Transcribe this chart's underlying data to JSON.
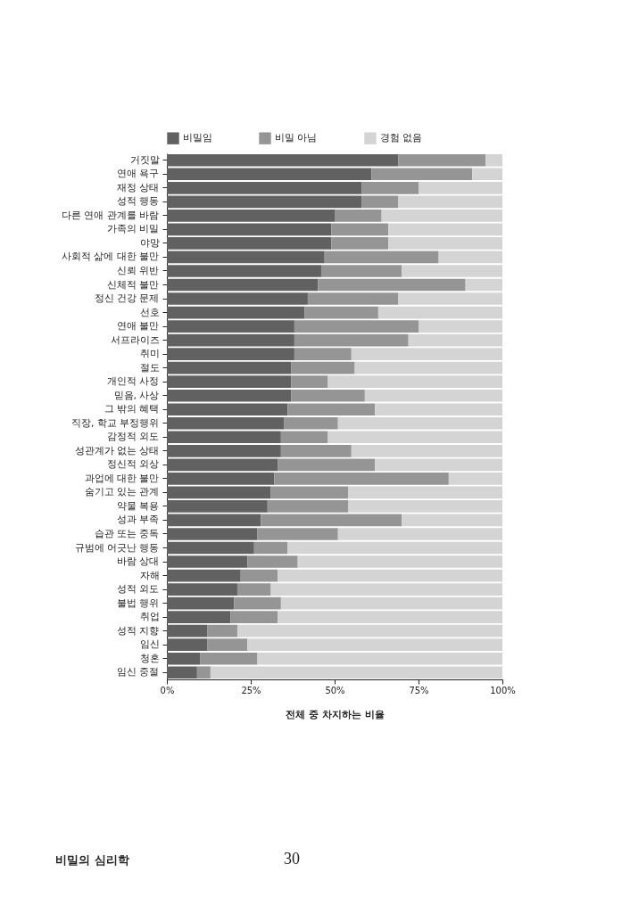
{
  "chart_data": {
    "type": "bar",
    "orientation": "horizontal",
    "stacked": true,
    "categories": [
      "거짓말",
      "연애 욕구",
      "재정 상태",
      "성적 행동",
      "다른 연애 관계를 바람",
      "가족의 비밀",
      "야망",
      "사회적 삶에 대한 불만",
      "신뢰 위반",
      "신체적 불만",
      "정신 건강 문제",
      "선호",
      "연애 불만",
      "서프라이즈",
      "취미",
      "절도",
      "개인적 사정",
      "믿음, 사상",
      "그 밖의 혜택",
      "직장, 학교 부정행위",
      "감정적 외도",
      "성관계가 없는 상태",
      "정신적 외상",
      "과업에 대한 불만",
      "숨기고 있는 관계",
      "약물 복용",
      "성과 부족",
      "습관 또는 중독",
      "규범에 어긋난 행동",
      "바람 상대",
      "자해",
      "성적 외도",
      "불법 행위",
      "취업",
      "성적 지향",
      "임신",
      "청혼",
      "임신 중절"
    ],
    "series": [
      {
        "name": "비밀임",
        "color": "#616161",
        "values": [
          69,
          61,
          58,
          58,
          50,
          49,
          49,
          47,
          46,
          45,
          42,
          41,
          38,
          38,
          38,
          37,
          37,
          37,
          36,
          35,
          34,
          34,
          33,
          32,
          31,
          30,
          28,
          27,
          26,
          24,
          22,
          21,
          20,
          19,
          12,
          12,
          10,
          9
        ]
      },
      {
        "name": "비밀 아님",
        "color": "#959595",
        "values": [
          26,
          30,
          17,
          11,
          14,
          17,
          17,
          34,
          24,
          44,
          27,
          22,
          37,
          34,
          17,
          19,
          11,
          22,
          26,
          16,
          14,
          21,
          29,
          52,
          23,
          24,
          42,
          24,
          10,
          15,
          11,
          10,
          14,
          14,
          9,
          12,
          17,
          4
        ]
      },
      {
        "name": "경험 없음",
        "color": "#d4d4d4",
        "values": [
          5,
          9,
          25,
          31,
          36,
          34,
          34,
          19,
          30,
          11,
          31,
          37,
          25,
          28,
          45,
          44,
          52,
          41,
          38,
          49,
          52,
          45,
          38,
          16,
          46,
          46,
          30,
          49,
          64,
          61,
          67,
          69,
          66,
          67,
          79,
          76,
          73,
          87
        ]
      }
    ],
    "xlim": [
      0,
      100
    ],
    "xticks": [
      {
        "value": 0,
        "label": "0%"
      },
      {
        "value": 25,
        "label": "25%"
      },
      {
        "value": 50,
        "label": "50%"
      },
      {
        "value": 75,
        "label": "75%"
      },
      {
        "value": 100,
        "label": "100%"
      }
    ],
    "xlabel": "전체 중 차지하는 비율",
    "legend": "top",
    "grid": false,
    "annotations": [
      "비밀의 심리학",
      "30"
    ]
  }
}
